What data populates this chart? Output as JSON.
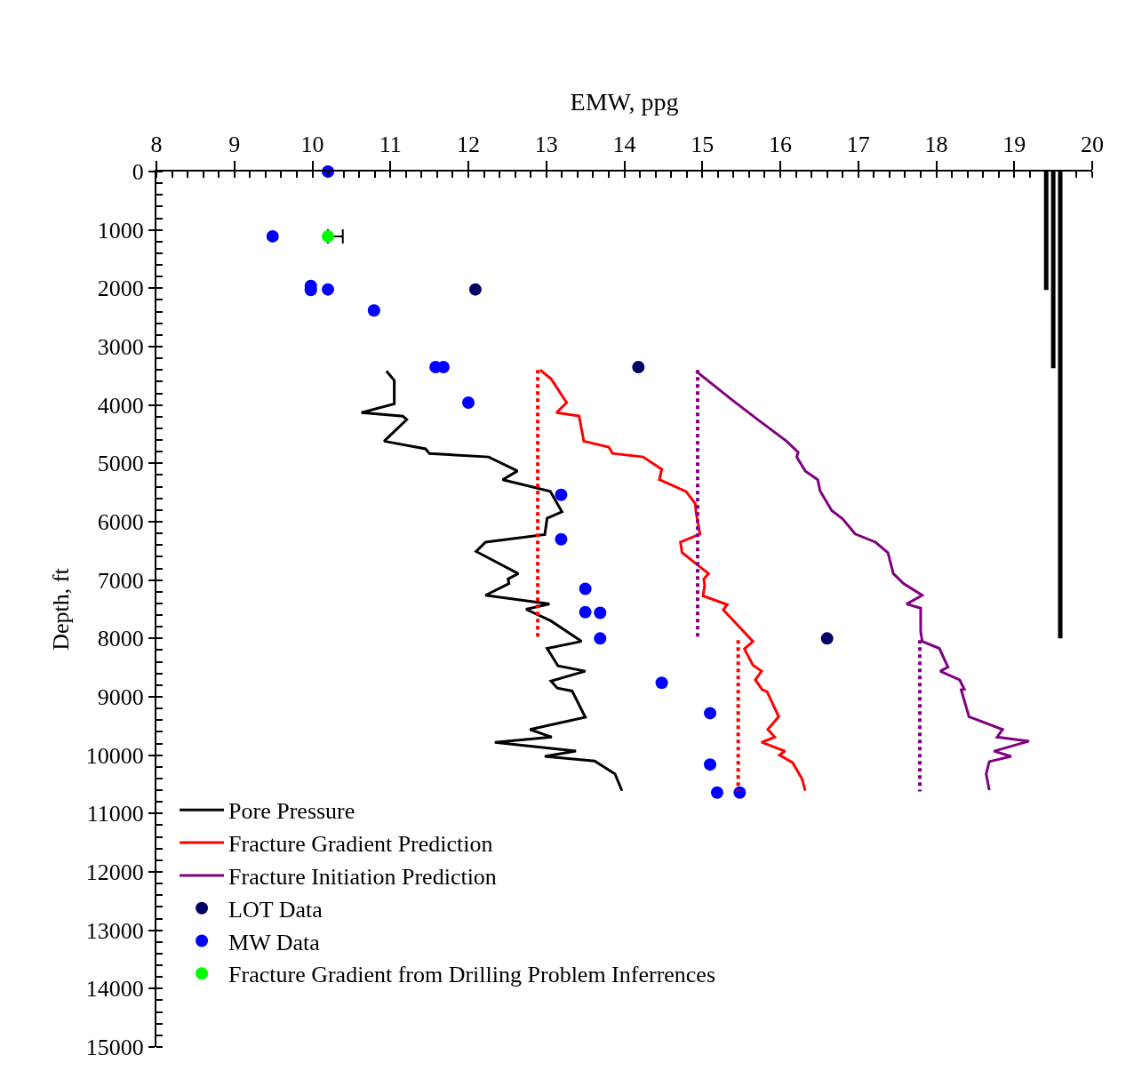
{
  "chart_data": {
    "type": "line",
    "xlabel": "EMW, ppg",
    "ylabel": "Depth, ft",
    "xlim": [
      8,
      20
    ],
    "xticks": [
      8,
      9,
      10,
      11,
      12,
      13,
      14,
      15,
      16,
      17,
      18,
      19,
      20
    ],
    "ylim": [
      15000,
      0
    ],
    "yticks": [
      0,
      1000,
      2000,
      3000,
      4000,
      5000,
      6000,
      7000,
      8000,
      9000,
      10000,
      11000,
      12000,
      13000,
      14000,
      15000
    ],
    "legend": "bottom left",
    "series": [
      {
        "name": "Pore Pressure",
        "color": "#000000",
        "marker": "none",
        "line_style": "solid",
        "x": [
          10.95,
          11.05,
          11.05,
          10.63,
          11.16,
          11.21,
          10.92,
          11.45,
          11.5,
          12.26,
          12.63,
          12.44,
          13.05,
          13.2,
          13.01,
          12.98,
          12.22,
          12.1,
          12.64,
          12.51,
          12.52,
          12.22,
          13.04,
          12.74,
          13.06,
          13.45,
          13.01,
          13.15,
          13.5,
          13.06,
          13.14,
          13.33,
          13.5,
          12.79,
          13.07,
          12.34,
          13.38,
          12.98,
          13.62,
          13.88,
          13.97
        ],
        "values": [
          3420,
          3580,
          3980,
          4130,
          4190,
          4250,
          4620,
          4750,
          4830,
          4890,
          5130,
          5280,
          5480,
          5830,
          5940,
          6220,
          6350,
          6510,
          6890,
          6980,
          7060,
          7260,
          7410,
          7500,
          7700,
          8050,
          8170,
          8470,
          8560,
          8730,
          8850,
          8900,
          9350,
          9560,
          9690,
          9780,
          9930,
          10020,
          10100,
          10320,
          10610
        ]
      },
      {
        "name": "Fracture Gradient Prediction",
        "color": "#ff0000",
        "marker": "none",
        "line_style": "solid",
        "x": [
          12.92,
          13.06,
          13.26,
          13.13,
          13.42,
          13.48,
          13.8,
          13.85,
          14.24,
          14.48,
          14.45,
          14.79,
          14.91,
          14.92,
          14.97,
          14.72,
          14.74,
          15.08,
          15.02,
          15.03,
          15.01,
          15.32,
          15.27,
          15.65,
          15.54,
          15.65,
          15.76,
          15.68,
          15.77,
          15.83,
          15.98,
          15.84,
          15.93,
          15.76,
          16.06,
          15.99,
          16.16,
          16.28,
          16.32
        ],
        "values": [
          3400,
          3550,
          3960,
          4130,
          4190,
          4620,
          4720,
          4830,
          4890,
          5100,
          5280,
          5480,
          5690,
          5840,
          6210,
          6350,
          6530,
          6890,
          6980,
          7090,
          7270,
          7420,
          7510,
          8050,
          8180,
          8460,
          8560,
          8710,
          8880,
          8910,
          9340,
          9560,
          9690,
          9780,
          9930,
          10000,
          10130,
          10410,
          10610
        ]
      },
      {
        "name": "Fracture Initiation Prediction",
        "color": "#800080",
        "marker": "none",
        "line_style": "solid",
        "x": [
          14.92,
          15.37,
          15.7,
          16.08,
          16.23,
          16.21,
          16.32,
          16.48,
          16.51,
          16.66,
          16.8,
          16.96,
          17.22,
          17.38,
          17.45,
          17.58,
          17.82,
          17.62,
          17.8,
          17.8,
          17.82,
          18.04,
          18.15,
          18.05,
          18.3,
          18.36,
          18.32,
          18.42,
          18.85,
          18.78,
          19.19,
          18.74,
          18.96,
          18.68,
          18.64,
          18.68
        ],
        "values": [
          3420,
          3900,
          4240,
          4620,
          4810,
          4890,
          5130,
          5280,
          5470,
          5810,
          5950,
          6210,
          6350,
          6530,
          6890,
          7060,
          7260,
          7410,
          7480,
          7880,
          8050,
          8170,
          8490,
          8560,
          8710,
          8870,
          8880,
          9340,
          9560,
          9690,
          9760,
          9930,
          10020,
          10110,
          10320,
          10600
        ]
      },
      {
        "name": "LOT Data",
        "type": "scatter",
        "color": "#000066",
        "marker": "circle",
        "x": [
          12.09,
          14.18,
          16.6
        ],
        "values": [
          2020,
          3350,
          8000
        ]
      },
      {
        "name": "MW Data",
        "type": "scatter",
        "color": "#0000ff",
        "marker": "circle",
        "x": [
          10.2,
          9.49,
          9.98,
          9.98,
          10.2,
          10.79,
          11.58,
          11.68,
          12.0,
          13.19,
          13.19,
          13.5,
          13.5,
          13.69,
          13.69,
          14.48,
          15.1,
          15.1,
          15.19,
          15.48
        ],
        "values": [
          0,
          1110,
          1960,
          2030,
          2020,
          2380,
          3350,
          3350,
          3960,
          5540,
          6300,
          7150,
          7550,
          7560,
          8000,
          8760,
          9280,
          10160,
          10640,
          10640
        ]
      },
      {
        "name": "Fracture Gradient from Drilling Problem Inferrences",
        "type": "scatter",
        "color": "#00ff00",
        "marker": "circle",
        "x": [
          10.2
        ],
        "values": [
          1110
        ],
        "xerrors": [
          [
            10.2,
            10.39
          ]
        ]
      },
      {
        "color": "#ff0000",
        "marker": "none",
        "line_style": "dotted",
        "x": [
          12.89,
          12.89
        ],
        "values": [
          3400,
          7970
        ]
      },
      {
        "color": "#ff0000",
        "marker": "none",
        "line_style": "dotted",
        "x": [
          15.46,
          15.46
        ],
        "values": [
          8030,
          10610
        ]
      },
      {
        "color": "#800080",
        "marker": "none",
        "line_style": "dotted",
        "x": [
          14.94,
          14.94
        ],
        "values": [
          3400,
          8000
        ]
      },
      {
        "color": "#800080",
        "marker": "none",
        "line_style": "dotted",
        "x": [
          17.79,
          17.79
        ],
        "values": [
          8030,
          10620
        ]
      },
      {
        "color": "#000000",
        "marker": "none",
        "line_style": "solid",
        "x": [
          19.41,
          19.41
        ],
        "values": [
          0,
          2030
        ]
      },
      {
        "color": "#000000",
        "marker": "none",
        "line_style": "solid",
        "x": [
          19.5,
          19.5
        ],
        "values": [
          0,
          3370
        ]
      },
      {
        "color": "#000000",
        "marker": "none",
        "line_style": "solid",
        "x": [
          19.59,
          19.59
        ],
        "values": [
          0,
          8000
        ]
      }
    ]
  }
}
